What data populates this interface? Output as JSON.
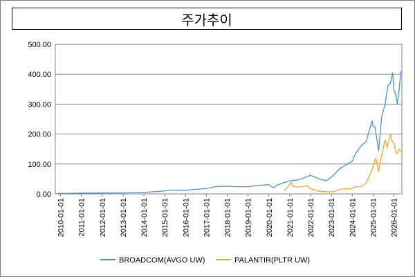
{
  "chart_data": {
    "type": "line",
    "title": "주가추이",
    "xlabel": "",
    "ylabel": "",
    "ylim": [
      0,
      500
    ],
    "yticks": [
      "0.00",
      "100.00",
      "200.00",
      "300.00",
      "400.00",
      "500.00"
    ],
    "xticks": [
      "2010-01-01",
      "2011-01-01",
      "2012-01-01",
      "2013-01-01",
      "2014-01-01",
      "2015-01-01",
      "2016-01-01",
      "2017-01-01",
      "2018-01-01",
      "2019-01-01",
      "2020-01-01",
      "2021-01-01",
      "2022-01-01",
      "2023-01-01",
      "2024-01-01",
      "2025-01-01",
      "2026-01-01"
    ],
    "grid": "horizontal",
    "legend": "bottom",
    "series": [
      {
        "name": "BROADCOM(AVGO UW)",
        "color": "#4a90d9",
        "points": [
          [
            "2009-11-01",
            1.5
          ],
          [
            "2010-06-01",
            1.8
          ],
          [
            "2011-01-01",
            2.5
          ],
          [
            "2012-01-01",
            3.0
          ],
          [
            "2013-01-01",
            3.3
          ],
          [
            "2014-01-01",
            5
          ],
          [
            "2014-06-01",
            7
          ],
          [
            "2015-01-01",
            10
          ],
          [
            "2015-06-01",
            13
          ],
          [
            "2016-01-01",
            12
          ],
          [
            "2016-06-01",
            15
          ],
          [
            "2017-01-01",
            18
          ],
          [
            "2017-06-01",
            24
          ],
          [
            "2018-01-01",
            26
          ],
          [
            "2018-06-01",
            24
          ],
          [
            "2019-01-01",
            24
          ],
          [
            "2019-06-01",
            28
          ],
          [
            "2020-01-01",
            31
          ],
          [
            "2020-03-20",
            20
          ],
          [
            "2020-06-01",
            30
          ],
          [
            "2021-01-01",
            44
          ],
          [
            "2021-06-01",
            47
          ],
          [
            "2022-01-01",
            62
          ],
          [
            "2022-06-01",
            50
          ],
          [
            "2022-10-01",
            44
          ],
          [
            "2023-01-01",
            56
          ],
          [
            "2023-06-01",
            85
          ],
          [
            "2024-01-01",
            110
          ],
          [
            "2024-03-01",
            135
          ],
          [
            "2024-06-01",
            160
          ],
          [
            "2024-09-01",
            175
          ],
          [
            "2024-12-15",
            245
          ],
          [
            "2025-01-01",
            225
          ],
          [
            "2025-02-01",
            225
          ],
          [
            "2025-04-07",
            145
          ],
          [
            "2025-06-01",
            260
          ],
          [
            "2025-08-01",
            300
          ],
          [
            "2025-09-15",
            360
          ],
          [
            "2025-11-01",
            370
          ],
          [
            "2025-12-10",
            405
          ],
          [
            "2026-01-01",
            345
          ],
          [
            "2026-02-01",
            335
          ],
          [
            "2026-03-01",
            300
          ],
          [
            "2026-04-01",
            345
          ],
          [
            "2026-05-01",
            410
          ]
        ]
      },
      {
        "name": "PALANTIR(PLTR UW)",
        "color": "#f5a623",
        "points": [
          [
            "2020-10-01",
            10
          ],
          [
            "2020-12-01",
            25
          ],
          [
            "2021-01-27",
            39
          ],
          [
            "2021-03-01",
            25
          ],
          [
            "2021-06-01",
            23
          ],
          [
            "2021-11-01",
            27
          ],
          [
            "2022-01-01",
            17
          ],
          [
            "2022-06-01",
            9
          ],
          [
            "2022-12-01",
            6.5
          ],
          [
            "2023-02-01",
            8
          ],
          [
            "2023-06-01",
            15
          ],
          [
            "2023-08-01",
            17
          ],
          [
            "2023-12-01",
            17
          ],
          [
            "2024-03-01",
            24
          ],
          [
            "2024-06-01",
            24
          ],
          [
            "2024-09-01",
            37
          ],
          [
            "2024-12-01",
            75
          ],
          [
            "2025-02-18",
            120
          ],
          [
            "2025-04-07",
            75
          ],
          [
            "2025-06-01",
            130
          ],
          [
            "2025-08-01",
            180
          ],
          [
            "2025-09-01",
            155
          ],
          [
            "2025-11-01",
            200
          ],
          [
            "2025-12-01",
            175
          ],
          [
            "2026-01-01",
            170
          ],
          [
            "2026-02-01",
            140
          ],
          [
            "2026-03-01",
            135
          ],
          [
            "2026-04-01",
            150
          ],
          [
            "2026-05-01",
            140
          ]
        ]
      }
    ]
  }
}
